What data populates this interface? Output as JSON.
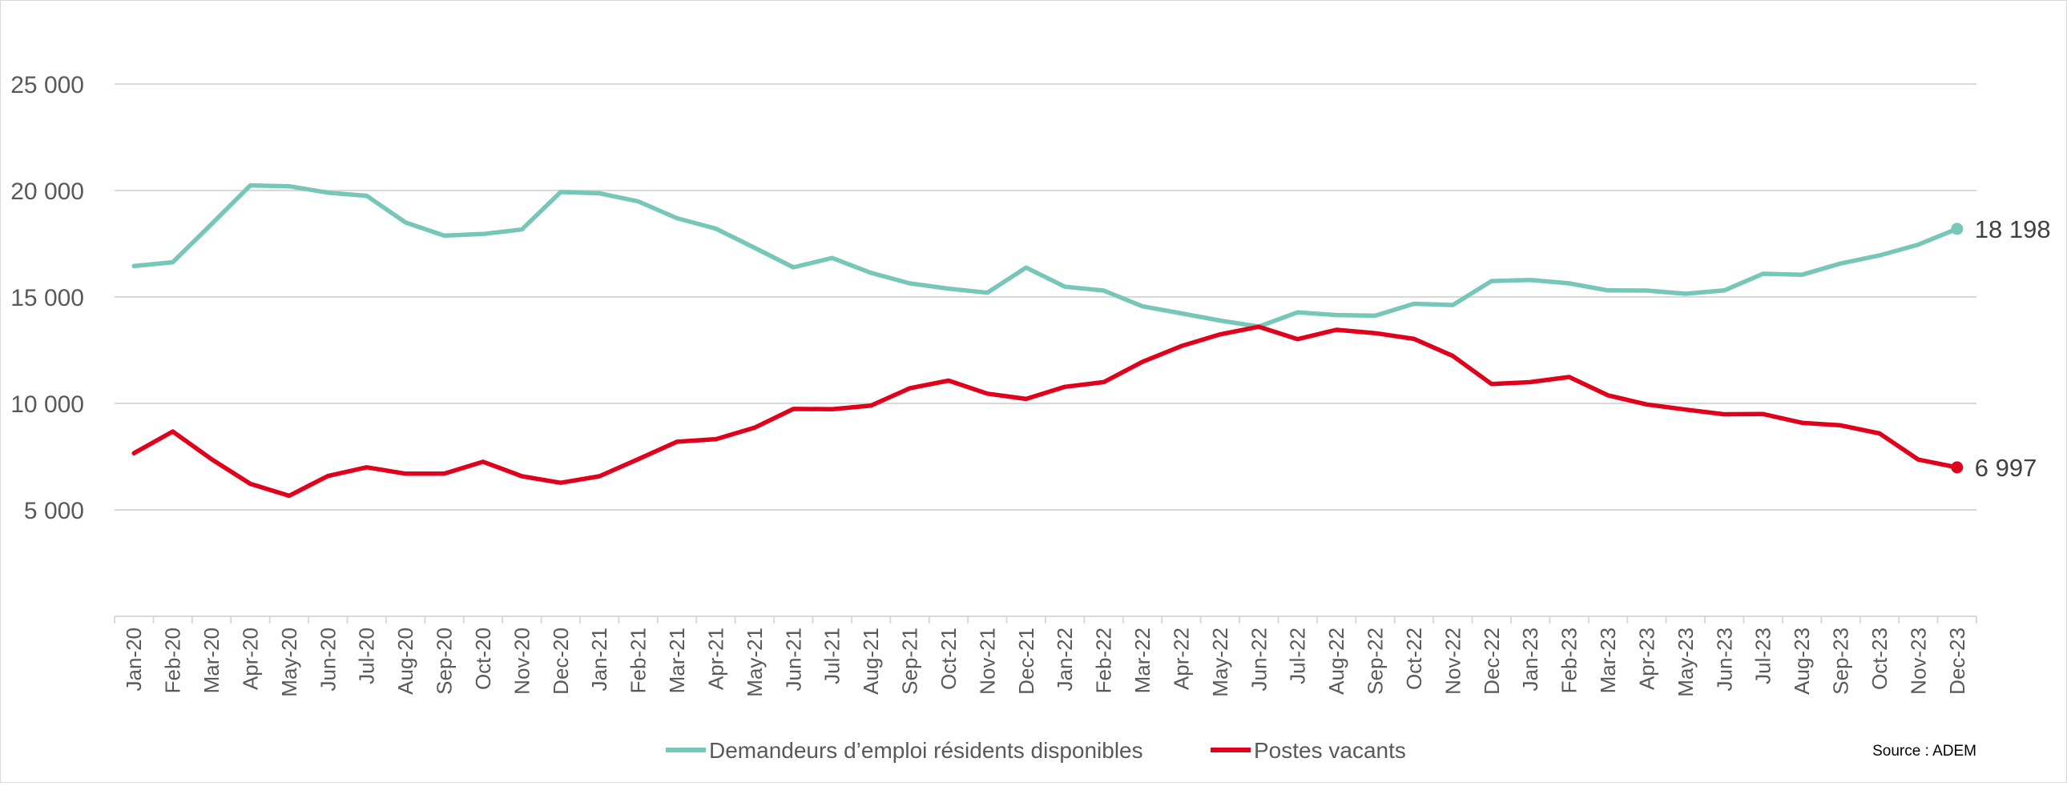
{
  "chart_data": {
    "type": "line",
    "title": "",
    "xlabel": "",
    "ylabel": "",
    "ylim": [
      0,
      25000
    ],
    "y_ticks": [
      5000,
      10000,
      15000,
      20000,
      25000
    ],
    "y_tick_labels": [
      "5 000",
      "10 000",
      "15 000",
      "20 000",
      "25 000"
    ],
    "grid": "horizontal",
    "legend": "bottom",
    "categories": [
      "Jan-20",
      "Feb-20",
      "Mar-20",
      "Apr-20",
      "May-20",
      "Jun-20",
      "Jul-20",
      "Aug-20",
      "Sep-20",
      "Oct-20",
      "Nov-20",
      "Dec-20",
      "Jan-21",
      "Feb-21",
      "Mar-21",
      "Apr-21",
      "May-21",
      "Jun-21",
      "Jul-21",
      "Aug-21",
      "Sep-21",
      "Oct-21",
      "Nov-21",
      "Dec-21",
      "Jan-22",
      "Feb-22",
      "Mar-22",
      "Apr-22",
      "May-22",
      "Jun-22",
      "Jul-22",
      "Aug-22",
      "Sep-22",
      "Oct-22",
      "Nov-22",
      "Dec-22",
      "Jan-23",
      "Feb-23",
      "Mar-23",
      "Apr-23",
      "May-23",
      "Jun-23",
      "Jul-23",
      "Aug-23",
      "Sep-23",
      "Oct-23",
      "Nov-23",
      "Dec-23"
    ],
    "series": [
      {
        "name": "Demandeurs d’emploi résidents disponibles",
        "color": "#76C6BA",
        "end_label": "18 198",
        "values": [
          16450,
          16630,
          18420,
          20240,
          20200,
          19900,
          19750,
          18500,
          17880,
          17960,
          18170,
          19930,
          19870,
          19490,
          18700,
          18210,
          17310,
          16390,
          16830,
          16130,
          15640,
          15390,
          15200,
          16380,
          15480,
          15300,
          14560,
          14230,
          13890,
          13610,
          14280,
          14150,
          14120,
          14680,
          14620,
          15750,
          15800,
          15640,
          15310,
          15300,
          15150,
          15310,
          16090,
          16040,
          16570,
          16950,
          17460,
          18198
        ]
      },
      {
        "name": "Postes vacants",
        "color": "#E0001B",
        "end_label": "6 997",
        "values": [
          7660,
          8680,
          7380,
          6220,
          5660,
          6590,
          7000,
          6700,
          6700,
          7260,
          6580,
          6270,
          6580,
          7380,
          8200,
          8320,
          8860,
          9740,
          9730,
          9900,
          10710,
          11070,
          10460,
          10210,
          10780,
          11000,
          11950,
          12690,
          13240,
          13600,
          13020,
          13460,
          13300,
          13030,
          12230,
          10910,
          11000,
          11240,
          10380,
          9950,
          9710,
          9490,
          9500,
          9090,
          8970,
          8590,
          7360,
          6997
        ]
      }
    ],
    "source": "Source : ADEM"
  }
}
